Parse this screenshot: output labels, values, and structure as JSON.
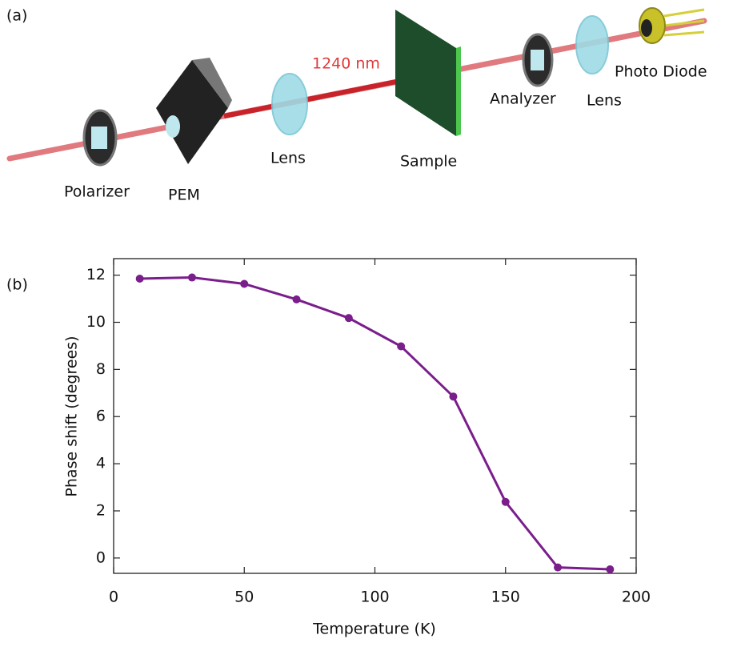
{
  "diagram": {
    "panel_label": "(a)",
    "beam_label": "1240 nm",
    "components": [
      "Polarizer",
      "PEM",
      "Lens",
      "Sample",
      "Analyzer",
      "Lens",
      "Photo Diode"
    ]
  },
  "chart_data": {
    "type": "line",
    "panel_label": "(b)",
    "x_label": "Temperature (K)",
    "y_label": "Phase shift (degrees)",
    "x": [
      10,
      30,
      50,
      70,
      90,
      110,
      130,
      150,
      170,
      190
    ],
    "values": [
      11.85,
      11.9,
      11.63,
      10.97,
      10.18,
      8.98,
      6.85,
      2.38,
      -0.4,
      -0.48
    ],
    "color": "#7a1e8c",
    "xlim": [
      0,
      200
    ],
    "xticks": [
      0,
      50,
      100,
      150,
      200
    ],
    "ylim": [
      -0.65,
      12.7
    ],
    "yticks": [
      0,
      2,
      4,
      6,
      8,
      10,
      12
    ]
  }
}
